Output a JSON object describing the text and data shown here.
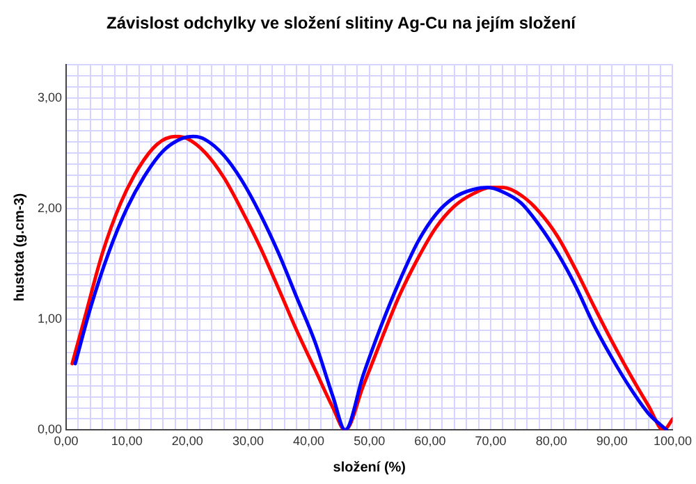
{
  "chart_data": {
    "type": "line",
    "title": "Závislost odchylky ve složení slitiny Ag-Cu na jejím složení",
    "xlabel": "složení (%)",
    "ylabel": "hustota (g.cm-3)",
    "xlim": [
      0,
      100
    ],
    "ylim": [
      0,
      3.3
    ],
    "xticks": [
      {
        "value": 0,
        "label": "0,00"
      },
      {
        "value": 2,
        "label": null
      },
      {
        "value": 4,
        "label": null
      },
      {
        "value": 6,
        "label": null
      },
      {
        "value": 8,
        "label": null
      },
      {
        "value": 10,
        "label": "10,00"
      },
      {
        "value": 12,
        "label": null
      },
      {
        "value": 14,
        "label": null
      },
      {
        "value": 16,
        "label": null
      },
      {
        "value": 18,
        "label": null
      },
      {
        "value": 20,
        "label": "20,00"
      },
      {
        "value": 22,
        "label": null
      },
      {
        "value": 24,
        "label": null
      },
      {
        "value": 26,
        "label": null
      },
      {
        "value": 28,
        "label": null
      },
      {
        "value": 30,
        "label": "30,00"
      },
      {
        "value": 32,
        "label": null
      },
      {
        "value": 34,
        "label": null
      },
      {
        "value": 36,
        "label": null
      },
      {
        "value": 38,
        "label": null
      },
      {
        "value": 40,
        "label": "40,00"
      },
      {
        "value": 42,
        "label": null
      },
      {
        "value": 44,
        "label": null
      },
      {
        "value": 46,
        "label": null
      },
      {
        "value": 48,
        "label": null
      },
      {
        "value": 50,
        "label": "50,00"
      },
      {
        "value": 52,
        "label": null
      },
      {
        "value": 54,
        "label": null
      },
      {
        "value": 56,
        "label": null
      },
      {
        "value": 58,
        "label": null
      },
      {
        "value": 60,
        "label": "60,00"
      },
      {
        "value": 62,
        "label": null
      },
      {
        "value": 64,
        "label": null
      },
      {
        "value": 66,
        "label": null
      },
      {
        "value": 68,
        "label": null
      },
      {
        "value": 70,
        "label": "70,00"
      },
      {
        "value": 72,
        "label": null
      },
      {
        "value": 74,
        "label": null
      },
      {
        "value": 76,
        "label": null
      },
      {
        "value": 78,
        "label": null
      },
      {
        "value": 80,
        "label": "80,00"
      },
      {
        "value": 82,
        "label": null
      },
      {
        "value": 84,
        "label": null
      },
      {
        "value": 86,
        "label": null
      },
      {
        "value": 88,
        "label": null
      },
      {
        "value": 90,
        "label": "90,00"
      },
      {
        "value": 92,
        "label": null
      },
      {
        "value": 94,
        "label": null
      },
      {
        "value": 96,
        "label": null
      },
      {
        "value": 98,
        "label": null
      },
      {
        "value": 100,
        "label": "100,00"
      }
    ],
    "yticks": [
      {
        "value": 0,
        "label": "0,00"
      },
      {
        "value": 0.1,
        "label": null
      },
      {
        "value": 0.2,
        "label": null
      },
      {
        "value": 0.3,
        "label": null
      },
      {
        "value": 0.4,
        "label": null
      },
      {
        "value": 0.5,
        "label": null
      },
      {
        "value": 0.6,
        "label": null
      },
      {
        "value": 0.7,
        "label": null
      },
      {
        "value": 0.8,
        "label": null
      },
      {
        "value": 0.9,
        "label": null
      },
      {
        "value": 1,
        "label": "1,00"
      },
      {
        "value": 1.1,
        "label": null
      },
      {
        "value": 1.2,
        "label": null
      },
      {
        "value": 1.3,
        "label": null
      },
      {
        "value": 1.4,
        "label": null
      },
      {
        "value": 1.5,
        "label": null
      },
      {
        "value": 1.6,
        "label": null
      },
      {
        "value": 1.7,
        "label": null
      },
      {
        "value": 1.8,
        "label": null
      },
      {
        "value": 1.9,
        "label": null
      },
      {
        "value": 2,
        "label": "2,00"
      },
      {
        "value": 2.1,
        "label": null
      },
      {
        "value": 2.2,
        "label": null
      },
      {
        "value": 2.3,
        "label": null
      },
      {
        "value": 2.4,
        "label": null
      },
      {
        "value": 2.5,
        "label": null
      },
      {
        "value": 2.6,
        "label": null
      },
      {
        "value": 2.7,
        "label": null
      },
      {
        "value": 2.8,
        "label": null
      },
      {
        "value": 2.9,
        "label": null
      },
      {
        "value": 3,
        "label": "3,00"
      },
      {
        "value": 3.1,
        "label": null
      },
      {
        "value": 3.2,
        "label": null
      },
      {
        "value": 3.3,
        "label": null
      }
    ],
    "grid": true,
    "legend": false,
    "marker": "none",
    "line_style": "solid",
    "series": [
      {
        "color": "#0000ff",
        "x": [
          1.5,
          4,
          7,
          10,
          13,
          16,
          19,
          21,
          23,
          26,
          29,
          32,
          35,
          38,
          41,
          44,
          46,
          49,
          52,
          55,
          58,
          61,
          64,
          67,
          69.5,
          72,
          75,
          78,
          81,
          84,
          87,
          90,
          93,
          96,
          99
        ],
        "values": [
          0.6,
          1.1,
          1.6,
          2.0,
          2.3,
          2.52,
          2.63,
          2.65,
          2.62,
          2.48,
          2.25,
          1.95,
          1.6,
          1.2,
          0.8,
          0.3,
          0,
          0.5,
          0.95,
          1.35,
          1.7,
          1.95,
          2.1,
          2.17,
          2.19,
          2.15,
          2.05,
          1.85,
          1.6,
          1.3,
          0.95,
          0.65,
          0.38,
          0.15,
          0
        ]
      },
      {
        "color": "#ff0000",
        "x": [
          1,
          3,
          6,
          9,
          12,
          15,
          18,
          20,
          23,
          26,
          29,
          32,
          35,
          38,
          41,
          44,
          46,
          49,
          52,
          55,
          58,
          61,
          64,
          67,
          70,
          72,
          75,
          78,
          81,
          84,
          87,
          90,
          93,
          96,
          98.5,
          100
        ],
        "values": [
          0.6,
          1.0,
          1.6,
          2.05,
          2.37,
          2.58,
          2.65,
          2.63,
          2.5,
          2.28,
          1.98,
          1.65,
          1.28,
          0.9,
          0.55,
          0.2,
          0,
          0.4,
          0.82,
          1.22,
          1.55,
          1.83,
          2.02,
          2.13,
          2.19,
          2.19,
          2.12,
          1.97,
          1.75,
          1.45,
          1.12,
          0.8,
          0.5,
          0.22,
          0,
          0.1
        ]
      }
    ]
  }
}
